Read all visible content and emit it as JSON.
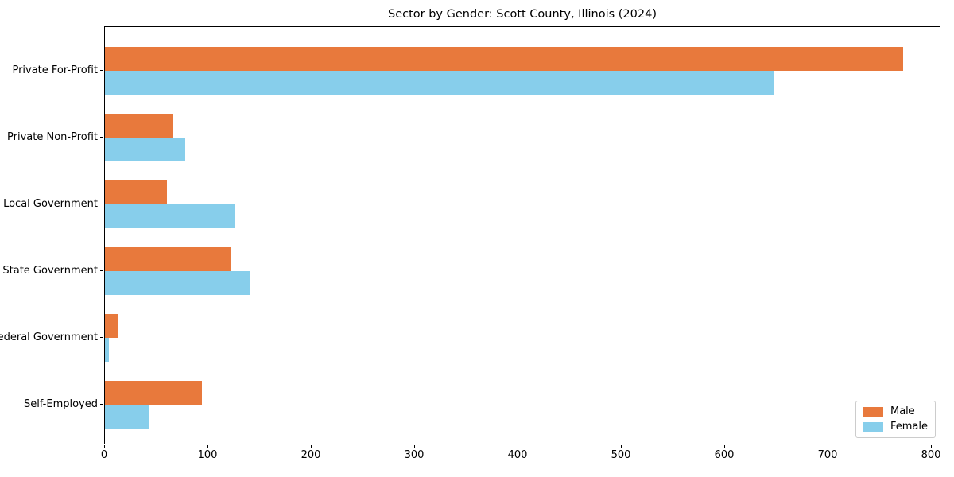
{
  "chart_data": {
    "type": "bar",
    "orientation": "horizontal",
    "title": "Sector by Gender: Scott County, Illinois (2024)",
    "categories": [
      "Private For-Profit",
      "Private Non-Profit",
      "Local Government",
      "State Government",
      "Federal Government",
      "Self-Employed"
    ],
    "series": [
      {
        "name": "Male",
        "color": "#E8793C",
        "values": [
          772,
          66,
          60,
          122,
          13,
          94
        ]
      },
      {
        "name": "Female",
        "color": "#87CEEB",
        "values": [
          648,
          78,
          126,
          141,
          4,
          42
        ]
      }
    ],
    "xlabel": "",
    "ylabel": "",
    "xlim": [
      0,
      810
    ],
    "x_ticks": [
      0,
      100,
      200,
      300,
      400,
      500,
      600,
      700,
      800
    ],
    "grid": false,
    "legend_position": "lower right",
    "axis_color": "#000000",
    "legend_border_color": "#cccccc"
  }
}
